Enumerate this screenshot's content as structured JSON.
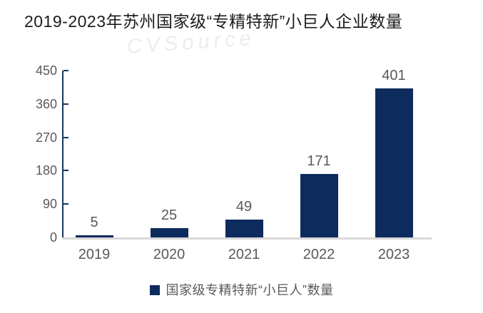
{
  "title": "2019-2023年苏州国家级“专精特新”小巨人企业数量",
  "watermark": "CVSource",
  "legend": {
    "label": "国家级专精特新“小巨人”数量"
  },
  "colors": {
    "bar": "#0e2b5d",
    "axis": "#173760",
    "baseline": "#d9d9d9",
    "label_gray": "#595959",
    "title_text": "#1c1c1c",
    "watermark": "#ececec"
  },
  "chart_data": {
    "type": "bar",
    "title": "2019-2023年苏州国家级“专精特新”小巨人企业数量",
    "categories": [
      "2019",
      "2020",
      "2021",
      "2022",
      "2023"
    ],
    "series": [
      {
        "name": "国家级专精特新“小巨人”数量",
        "values": [
          5,
          25,
          49,
          171,
          401
        ]
      }
    ],
    "data_labels": [
      "5",
      "25",
      "49",
      "171",
      "401"
    ],
    "xlabel": "",
    "ylabel": "",
    "ylim": [
      0,
      450
    ],
    "yticks": [
      0,
      90,
      180,
      270,
      360,
      450
    ],
    "grid": false,
    "legend_position": "bottom",
    "bar_color": "#0e2b5d"
  }
}
